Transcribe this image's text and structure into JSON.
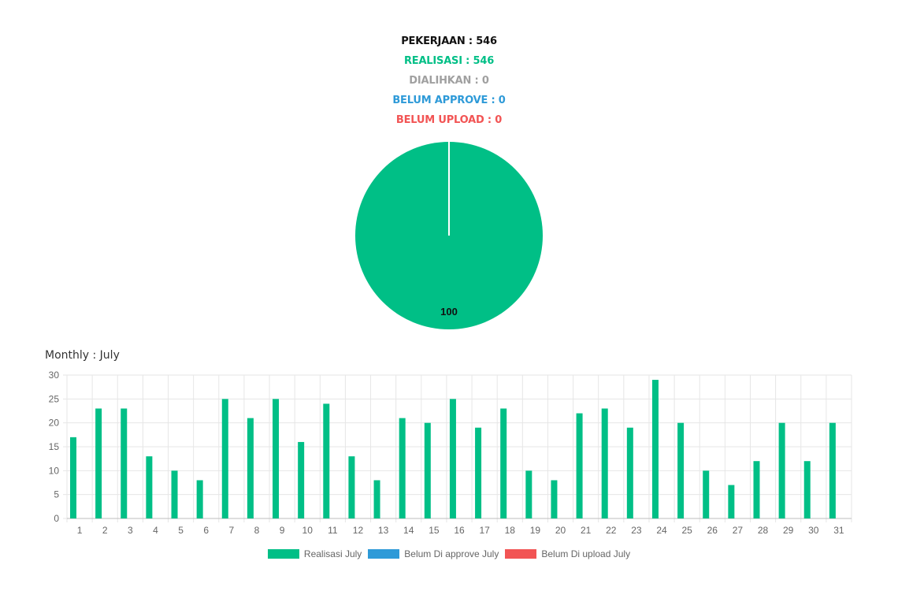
{
  "summary": {
    "pekerjaan": "PEKERJAAN : 546",
    "realisasi": "REALISASI : 546",
    "dialihkan": "DIALIHKAN : 0",
    "belum_approve": "BELUM APPROVE : 0",
    "belum_upload": "BELUM UPLOAD : 0"
  },
  "colors": {
    "black": "#111111",
    "green": "#00bf86",
    "gray": "#a0a0a0",
    "blue": "#2e9ad8",
    "red": "#f25454",
    "grid": "#e6e6e6",
    "axis": "#666666"
  },
  "monthly_title": "Monthly : July",
  "chart_data": [
    {
      "type": "pie",
      "values": [
        100,
        0,
        0
      ],
      "data_label": "100"
    },
    {
      "type": "bar",
      "categories": [
        "1",
        "2",
        "3",
        "4",
        "5",
        "6",
        "7",
        "8",
        "9",
        "10",
        "11",
        "12",
        "13",
        "14",
        "15",
        "16",
        "17",
        "18",
        "19",
        "20",
        "21",
        "22",
        "23",
        "24",
        "25",
        "26",
        "27",
        "28",
        "29",
        "30",
        "31"
      ],
      "series": [
        {
          "name": "Realisasi July",
          "values": [
            17,
            23,
            23,
            13,
            10,
            8,
            25,
            21,
            25,
            16,
            24,
            13,
            8,
            21,
            20,
            25,
            19,
            23,
            10,
            8,
            22,
            23,
            19,
            29,
            20,
            10,
            7,
            12,
            20,
            12,
            20
          ]
        },
        {
          "name": "Belum Di approve July",
          "values": [
            0,
            0,
            0,
            0,
            0,
            0,
            0,
            0,
            0,
            0,
            0,
            0,
            0,
            0,
            0,
            0,
            0,
            0,
            0,
            0,
            0,
            0,
            0,
            0,
            0,
            0,
            0,
            0,
            0,
            0,
            0
          ]
        },
        {
          "name": "Belum Di upload July",
          "values": [
            0,
            0,
            0,
            0,
            0,
            0,
            0,
            0,
            0,
            0,
            0,
            0,
            0,
            0,
            0,
            0,
            0,
            0,
            0,
            0,
            0,
            0,
            0,
            0,
            0,
            0,
            0,
            0,
            0,
            0,
            0
          ]
        }
      ],
      "ylim": [
        0,
        30
      ],
      "yticks": [
        "0",
        "5",
        "10",
        "15",
        "20",
        "25",
        "30"
      ],
      "grid": true,
      "legend_position": "bottom"
    }
  ],
  "legend": [
    {
      "label": "Realisasi July"
    },
    {
      "label": "Belum Di approve July"
    },
    {
      "label": "Belum Di upload July"
    }
  ]
}
